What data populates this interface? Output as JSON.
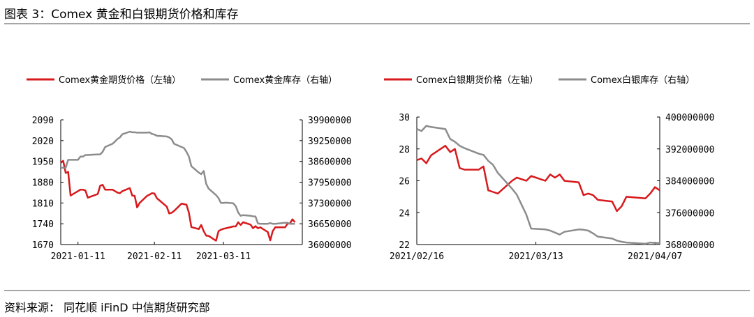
{
  "figure": {
    "title": "图表 3：Comex 黄金和白银期货价格和库存",
    "source": "资料来源：  同花顺 iFinD 中信期货研究部"
  },
  "colors": {
    "price": "#d7191c",
    "inventory": "#8c8c8c"
  },
  "chart_data": [
    {
      "type": "line",
      "legend_placement": "top",
      "grid": false,
      "series": [
        {
          "name": "Comex黄金期货价格（左轴）",
          "axis": "left",
          "x": [
            "2021-01-04",
            "2021-01-05",
            "2021-01-06",
            "2021-01-07",
            "2021-01-08",
            "2021-01-11",
            "2021-01-12",
            "2021-01-13",
            "2021-01-14",
            "2021-01-15",
            "2021-01-19",
            "2021-01-20",
            "2021-01-21",
            "2021-01-22",
            "2021-01-25",
            "2021-01-26",
            "2021-01-27",
            "2021-01-28",
            "2021-01-29",
            "2021-02-01",
            "2021-02-02",
            "2021-02-03",
            "2021-02-04",
            "2021-02-05",
            "2021-02-08",
            "2021-02-09",
            "2021-02-10",
            "2021-02-11",
            "2021-02-12",
            "2021-02-16",
            "2021-02-17",
            "2021-02-18",
            "2021-02-19",
            "2021-02-22",
            "2021-02-23",
            "2021-02-24",
            "2021-02-25",
            "2021-02-26",
            "2021-03-01",
            "2021-03-02",
            "2021-03-03",
            "2021-03-04",
            "2021-03-05",
            "2021-03-08",
            "2021-03-09",
            "2021-03-10",
            "2021-03-11",
            "2021-03-12",
            "2021-03-15",
            "2021-03-16",
            "2021-03-17",
            "2021-03-18",
            "2021-03-19",
            "2021-03-22",
            "2021-03-23",
            "2021-03-24",
            "2021-03-25",
            "2021-03-26",
            "2021-03-29",
            "2021-03-30",
            "2021-03-31",
            "2021-04-01",
            "2021-04-05",
            "2021-04-06",
            "2021-04-07",
            "2021-04-08",
            "2021-04-09"
          ],
          "values": [
            1945,
            1952,
            1911,
            1915,
            1835,
            1850,
            1855,
            1855,
            1852,
            1828,
            1840,
            1868,
            1871,
            1855,
            1855,
            1850,
            1845,
            1843,
            1850,
            1860,
            1835,
            1834,
            1795,
            1810,
            1834,
            1838,
            1843,
            1842,
            1826,
            1798,
            1775,
            1777,
            1783,
            1808,
            1806,
            1804,
            1777,
            1729,
            1722,
            1736,
            1715,
            1700,
            1699,
            1683,
            1715,
            1720,
            1723,
            1725,
            1731,
            1731,
            1745,
            1736,
            1745,
            1737,
            1725,
            1732,
            1725,
            1728,
            1712,
            1684,
            1715,
            1728,
            1728,
            1740,
            1741,
            1755,
            1745
          ]
        },
        {
          "name": "Comex黄金库存（右轴）",
          "axis": "right",
          "x": [
            "2021-01-04",
            "2021-01-05",
            "2021-01-06",
            "2021-01-07",
            "2021-01-08",
            "2021-01-11",
            "2021-01-12",
            "2021-01-13",
            "2021-01-14",
            "2021-01-15",
            "2021-01-19",
            "2021-01-20",
            "2021-01-21",
            "2021-01-22",
            "2021-01-25",
            "2021-01-26",
            "2021-01-27",
            "2021-01-28",
            "2021-01-29",
            "2021-02-01",
            "2021-02-02",
            "2021-02-03",
            "2021-02-04",
            "2021-02-05",
            "2021-02-08",
            "2021-02-09",
            "2021-02-10",
            "2021-02-11",
            "2021-02-12",
            "2021-02-16",
            "2021-02-17",
            "2021-02-18",
            "2021-02-19",
            "2021-02-22",
            "2021-02-23",
            "2021-02-24",
            "2021-02-25",
            "2021-02-26",
            "2021-03-01",
            "2021-03-02",
            "2021-03-03",
            "2021-03-04",
            "2021-03-05",
            "2021-03-08",
            "2021-03-09",
            "2021-03-10",
            "2021-03-11",
            "2021-03-12",
            "2021-03-15",
            "2021-03-16",
            "2021-03-17",
            "2021-03-18",
            "2021-03-19",
            "2021-03-22",
            "2021-03-23",
            "2021-03-24",
            "2021-03-25",
            "2021-03-26",
            "2021-03-29",
            "2021-03-30",
            "2021-03-31",
            "2021-04-01",
            "2021-04-05",
            "2021-04-06",
            "2021-04-07",
            "2021-04-08",
            "2021-04-09"
          ],
          "values": [
            38400000,
            38400000,
            38400000,
            38650000,
            38650000,
            38650000,
            38750000,
            38750000,
            38800000,
            38800000,
            38820000,
            38820000,
            38900000,
            39050000,
            39150000,
            39220000,
            39300000,
            39350000,
            39450000,
            39530000,
            39510000,
            39510000,
            39500000,
            39500000,
            39500000,
            39510000,
            39460000,
            39440000,
            39400000,
            39380000,
            39350000,
            39290000,
            39150000,
            39050000,
            39020000,
            38900000,
            38750000,
            38450000,
            38250000,
            38200000,
            38300000,
            37900000,
            37750000,
            37550000,
            37450000,
            37300000,
            37300000,
            37310000,
            37290000,
            37200000,
            37000000,
            36900000,
            36920000,
            36900000,
            36880000,
            36880000,
            36660000,
            36650000,
            36650000,
            36670000,
            36650000,
            36650000,
            36680000,
            36680000,
            36650000,
            36650000,
            36650000
          ]
        }
      ],
      "x_axis": {
        "ticks": [
          "2021-01-11",
          "2021-02-11",
          "2021-03-11"
        ],
        "label": ""
      },
      "y_left": {
        "ticks": [
          "2090",
          "2020",
          "1950",
          "1880",
          "1810",
          "1740",
          "1670"
        ],
        "range": [
          1670,
          2090
        ],
        "label": ""
      },
      "y_right": {
        "ticks": [
          "39900000",
          "39250000",
          "38600000",
          "37950000",
          "37300000",
          "36650000",
          "36000000"
        ],
        "range": [
          36000000,
          39900000
        ],
        "label": ""
      }
    },
    {
      "type": "line",
      "legend_placement": "top",
      "grid": false,
      "series": [
        {
          "name": "Comex白银期货价格（左轴）",
          "axis": "left",
          "x": [
            "2021-02-16",
            "2021-02-17",
            "2021-02-18",
            "2021-02-19",
            "2021-02-22",
            "2021-02-23",
            "2021-02-24",
            "2021-02-25",
            "2021-02-26",
            "2021-03-01",
            "2021-03-02",
            "2021-03-03",
            "2021-03-04",
            "2021-03-05",
            "2021-03-08",
            "2021-03-09",
            "2021-03-10",
            "2021-03-11",
            "2021-03-12",
            "2021-03-15",
            "2021-03-16",
            "2021-03-17",
            "2021-03-18",
            "2021-03-19",
            "2021-03-22",
            "2021-03-23",
            "2021-03-24",
            "2021-03-25",
            "2021-03-26",
            "2021-03-29",
            "2021-03-30",
            "2021-03-31",
            "2021-04-01",
            "2021-04-05",
            "2021-04-06",
            "2021-04-07",
            "2021-04-08"
          ],
          "values": [
            27.3,
            27.4,
            27.1,
            27.6,
            28.2,
            27.8,
            28.0,
            26.8,
            26.7,
            26.7,
            26.9,
            25.4,
            25.3,
            25.2,
            26.0,
            26.2,
            26.1,
            26.0,
            26.3,
            26.0,
            26.4,
            26.2,
            26.4,
            26.0,
            25.9,
            25.1,
            25.2,
            25.1,
            24.8,
            24.7,
            24.1,
            24.4,
            25.0,
            24.9,
            25.2,
            25.6,
            25.4
          ]
        },
        {
          "name": "Comex白银库存（右轴）",
          "axis": "right",
          "x": [
            "2021-02-16",
            "2021-02-17",
            "2021-02-18",
            "2021-02-19",
            "2021-02-22",
            "2021-02-23",
            "2021-02-24",
            "2021-02-25",
            "2021-02-26",
            "2021-03-01",
            "2021-03-02",
            "2021-03-03",
            "2021-03-04",
            "2021-03-05",
            "2021-03-08",
            "2021-03-09",
            "2021-03-10",
            "2021-03-11",
            "2021-03-12",
            "2021-03-15",
            "2021-03-16",
            "2021-03-17",
            "2021-03-18",
            "2021-03-19",
            "2021-03-22",
            "2021-03-23",
            "2021-03-24",
            "2021-03-25",
            "2021-03-26",
            "2021-03-29",
            "2021-03-30",
            "2021-03-31",
            "2021-04-01",
            "2021-04-05",
            "2021-04-06",
            "2021-04-07",
            "2021-04-08"
          ],
          "values": [
            397000000,
            396500000,
            397800000,
            397500000,
            397000000,
            394500000,
            393800000,
            392800000,
            392200000,
            390800000,
            390500000,
            389000000,
            388000000,
            386000000,
            382000000,
            380500000,
            378000000,
            375500000,
            372000000,
            371800000,
            371500000,
            371000000,
            370500000,
            371200000,
            371800000,
            371700000,
            371500000,
            370800000,
            370000000,
            369500000,
            369000000,
            368700000,
            368500000,
            368200000,
            368500000,
            368400000,
            368400000
          ]
        }
      ],
      "x_axis": {
        "ticks": [
          "2021/02/16",
          "2021/03/13",
          "2021/04/07"
        ],
        "label": ""
      },
      "y_left": {
        "ticks": [
          "30",
          "28",
          "26",
          "24",
          "22"
        ],
        "range": [
          22,
          30
        ],
        "label": ""
      },
      "y_right": {
        "ticks": [
          "400000000",
          "392000000",
          "384000000",
          "376000000",
          "368000000"
        ],
        "range": [
          368000000,
          400000000
        ],
        "label": ""
      }
    }
  ]
}
